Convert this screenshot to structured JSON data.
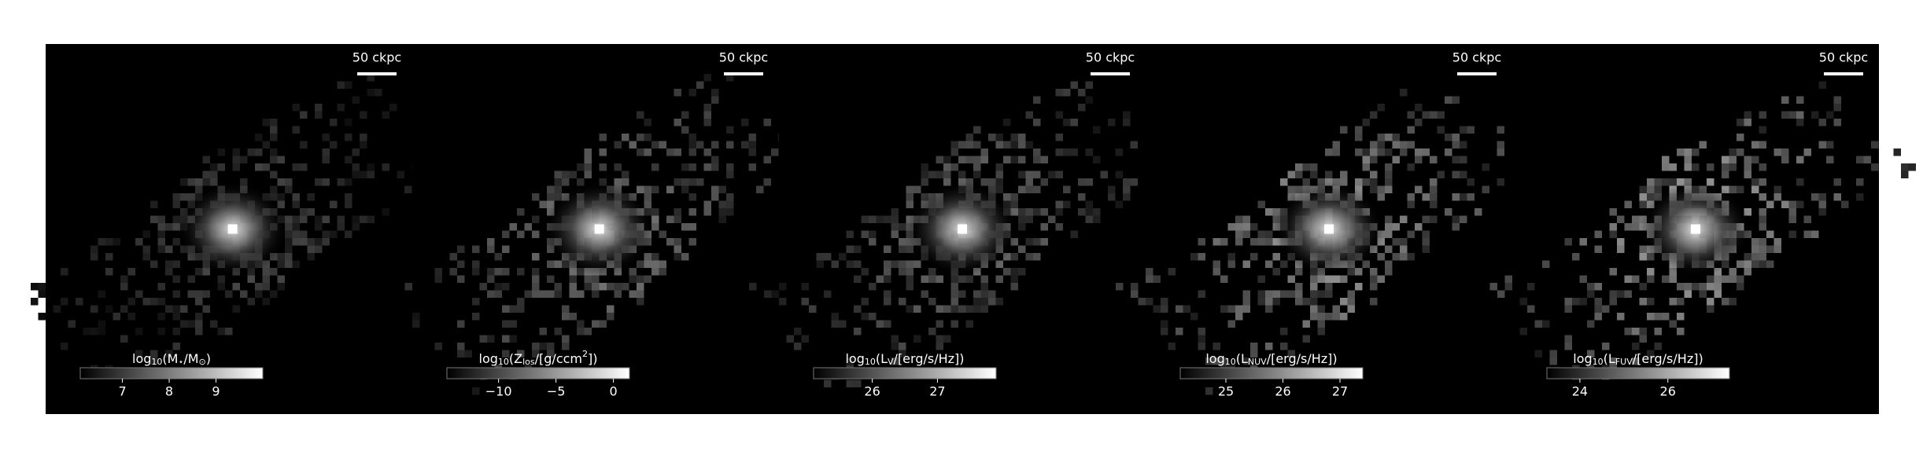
{
  "chart_data": [
    {
      "type": "image",
      "scalebar_label": "50 ckpc",
      "colorbar_label": [
        {
          "text": "log"
        },
        {
          "text": "10",
          "sub": true
        },
        {
          "text": "(M"
        },
        {
          "text": "⋆",
          "sub": true
        },
        {
          "text": "/M"
        },
        {
          "text": "⊙",
          "sub": true
        },
        {
          "text": ")"
        }
      ],
      "clim": [
        6.1,
        10.0
      ],
      "cticks": [
        7,
        8,
        9
      ]
    },
    {
      "type": "image",
      "scalebar_label": "50 ckpc",
      "colorbar_label": [
        {
          "text": "log"
        },
        {
          "text": "10",
          "sub": true
        },
        {
          "text": "(Z"
        },
        {
          "text": "los",
          "sub": true
        },
        {
          "text": "/[g/ccm"
        },
        {
          "text": "2",
          "sup": true
        },
        {
          "text": "])"
        }
      ],
      "clim": [
        -14.5,
        1.4
      ],
      "cticks": [
        {
          "value": -10,
          "label": "−10"
        },
        {
          "value": -5,
          "label": "−5"
        },
        0
      ]
    },
    {
      "type": "image",
      "scalebar_label": "50 ckpc",
      "colorbar_label": [
        {
          "text": "log"
        },
        {
          "text": "10",
          "sub": true
        },
        {
          "text": "(L"
        },
        {
          "text": "V",
          "sub": true
        },
        {
          "text": "/[erg/s/Hz])"
        }
      ],
      "clim": [
        25.1,
        27.9
      ],
      "cticks": [
        26,
        27
      ]
    },
    {
      "type": "image",
      "scalebar_label": "50 ckpc",
      "colorbar_label": [
        {
          "text": "log"
        },
        {
          "text": "10",
          "sub": true
        },
        {
          "text": "(L"
        },
        {
          "text": "NUV",
          "sub": true
        },
        {
          "text": "/[erg/s/Hz])"
        }
      ],
      "clim": [
        24.2,
        27.4
      ],
      "cticks": [
        25,
        26,
        27
      ]
    },
    {
      "type": "image",
      "scalebar_label": "50 ckpc",
      "colorbar_label": [
        {
          "text": "log"
        },
        {
          "text": "10",
          "sub": true
        },
        {
          "text": "(L"
        },
        {
          "text": "FUV",
          "sub": true
        },
        {
          "text": "/[erg/s/Hz])"
        }
      ],
      "clim": [
        23.25,
        27.4
      ],
      "cticks": [
        24,
        26
      ]
    }
  ]
}
